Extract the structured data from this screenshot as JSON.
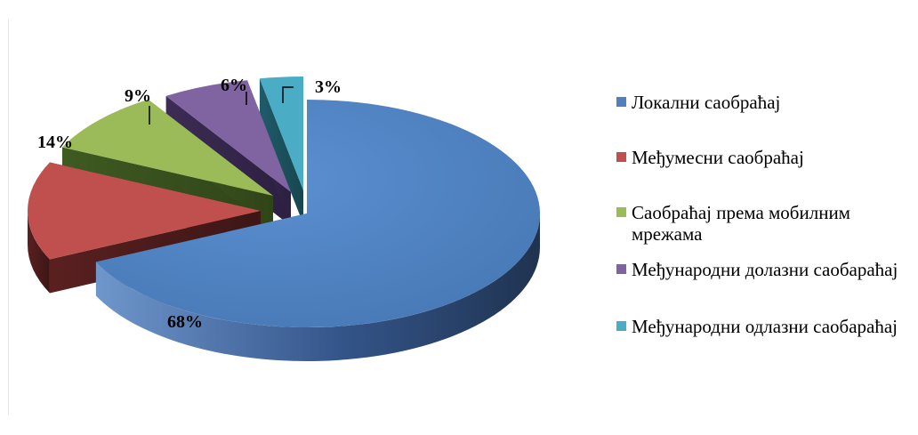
{
  "chart_data": {
    "type": "pie",
    "title": "",
    "categories": [
      "Локални саобраћај",
      "Међумесни саобраћај",
      "Саобраћај према мобилним мрежама",
      "Међународни долазни саобараћај",
      "Међународни одлазни саобараћај"
    ],
    "values": [
      68,
      14,
      9,
      6,
      3
    ],
    "data_labels": [
      "68%",
      "14%",
      "9%",
      "6%",
      "3%"
    ],
    "colors": [
      "#4F81BD",
      "#C0504D",
      "#9BBB59",
      "#8064A2",
      "#4BACC6"
    ],
    "legend_position": "right",
    "style": "3d-exploded"
  }
}
